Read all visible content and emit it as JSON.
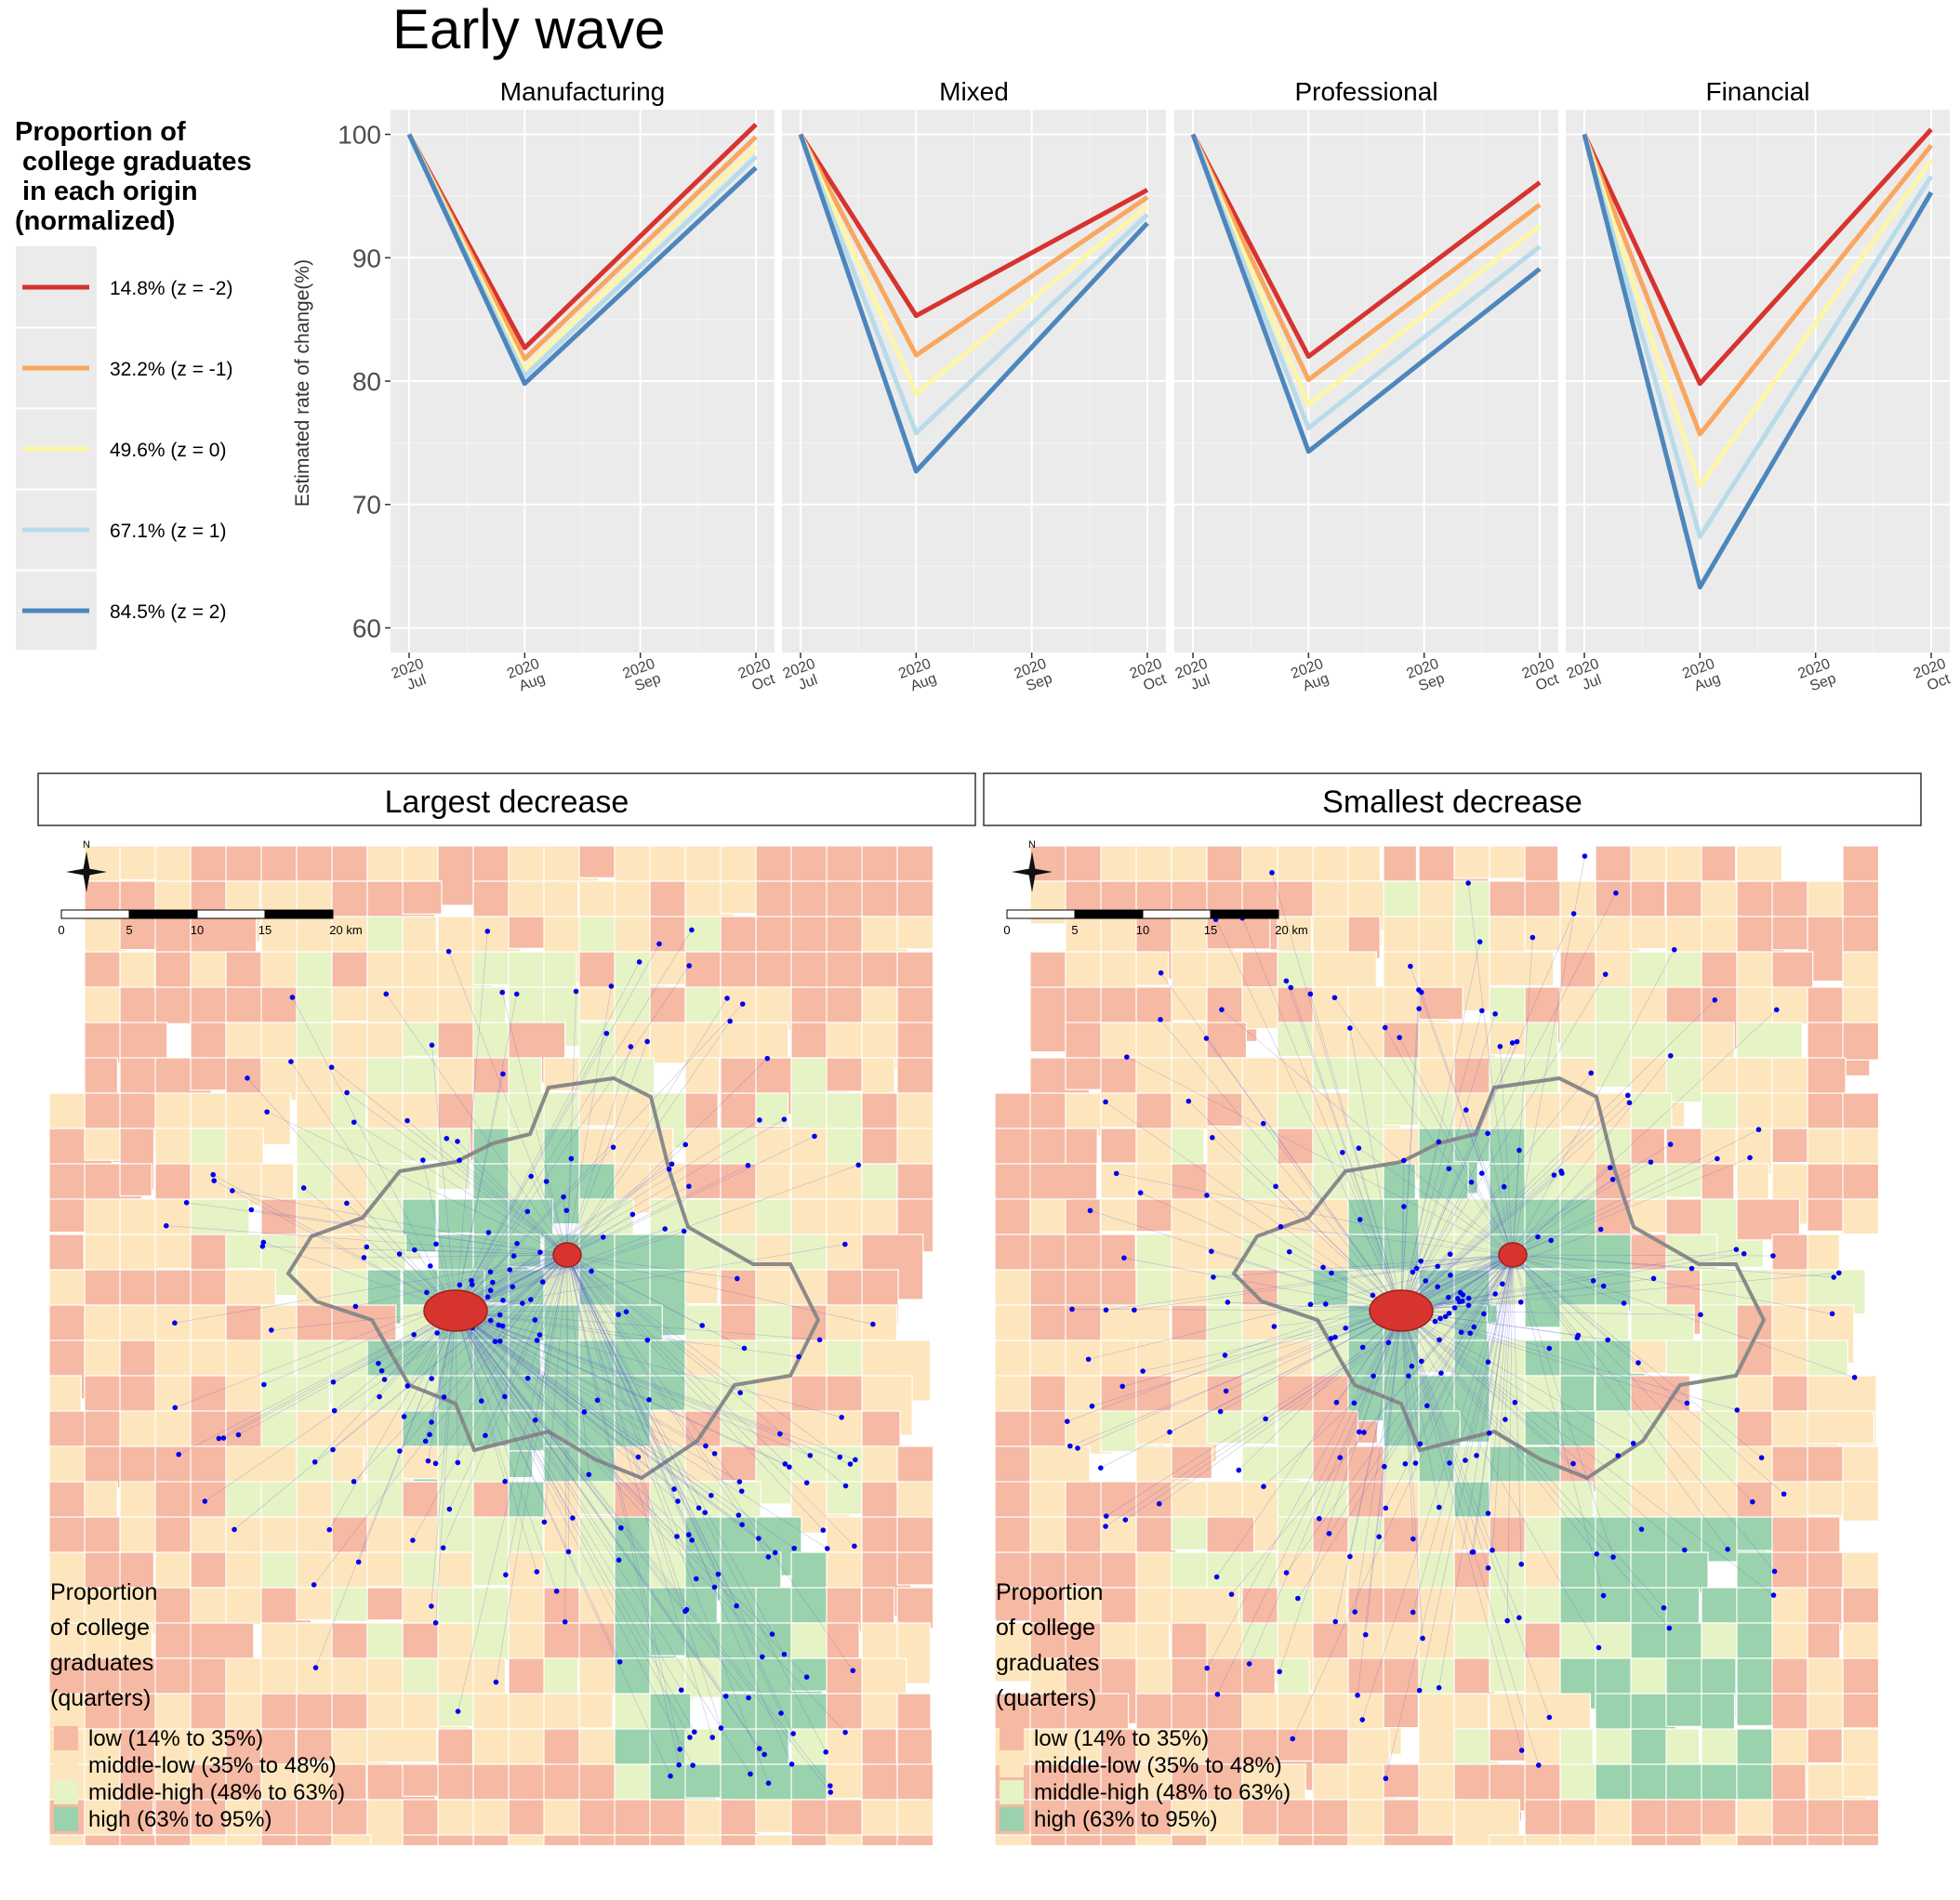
{
  "title": "Early wave",
  "y_axis_label": "Estimated rate of change(%)",
  "legend": {
    "title_lines": [
      "Proportion of",
      " college graduates",
      " in each origin",
      "(normalized)"
    ],
    "entries": [
      {
        "label": "14.8% (z = -2)",
        "color": "#d7332f"
      },
      {
        "label": "32.2% (z = -1)",
        "color": "#f9a75e"
      },
      {
        "label": "49.6% (z = 0)",
        "color": "#fdf6a8"
      },
      {
        "label": "67.1% (z = 1)",
        "color": "#b9dbe9"
      },
      {
        "label": "84.5% (z = 2)",
        "color": "#4c86bd"
      }
    ]
  },
  "chart_data": {
    "type": "line",
    "x": [
      "2020 Jul",
      "2020 Aug",
      "2020 Sep",
      "2020 Oct"
    ],
    "x_tick_lines": [
      [
        "2020",
        "Jul"
      ],
      [
        "2020",
        "Aug"
      ],
      [
        "2020",
        "Sep"
      ],
      [
        "2020",
        "Oct"
      ]
    ],
    "y_ticks": [
      60,
      70,
      80,
      90,
      100
    ],
    "ylim": [
      58,
      102
    ],
    "grid": true,
    "legend_position": "left",
    "facets": [
      {
        "name": "Manufacturing",
        "series": [
          {
            "name": "14.8% (z = -2)",
            "values": [
              100,
              82.7,
              null,
              100.8
            ]
          },
          {
            "name": "32.2% (z = -1)",
            "values": [
              100,
              81.8,
              null,
              99.8
            ]
          },
          {
            "name": "49.6% (z = 0)",
            "values": [
              100,
              81.0,
              null,
              99.0
            ]
          },
          {
            "name": "67.1% (z = 1)",
            "values": [
              100,
              80.4,
              null,
              98.2
            ]
          },
          {
            "name": "84.5% (z = 2)",
            "values": [
              100,
              79.8,
              null,
              97.3
            ]
          }
        ]
      },
      {
        "name": "Mixed",
        "series": [
          {
            "name": "14.8% (z = -2)",
            "values": [
              100,
              85.3,
              null,
              95.5
            ]
          },
          {
            "name": "32.2% (z = -1)",
            "values": [
              100,
              82.1,
              null,
              94.9
            ]
          },
          {
            "name": "49.6% (z = 0)",
            "values": [
              100,
              79.0,
              null,
              94.2
            ]
          },
          {
            "name": "67.1% (z = 1)",
            "values": [
              100,
              75.8,
              null,
              93.5
            ]
          },
          {
            "name": "84.5% (z = 2)",
            "values": [
              100,
              72.7,
              null,
              92.8
            ]
          }
        ]
      },
      {
        "name": "Professional",
        "series": [
          {
            "name": "14.8% (z = -2)",
            "values": [
              100,
              82.0,
              null,
              96.1
            ]
          },
          {
            "name": "32.2% (z = -1)",
            "values": [
              100,
              80.1,
              null,
              94.3
            ]
          },
          {
            "name": "49.6% (z = 0)",
            "values": [
              100,
              78.1,
              null,
              92.6
            ]
          },
          {
            "name": "67.1% (z = 1)",
            "values": [
              100,
              76.2,
              null,
              90.9
            ]
          },
          {
            "name": "84.5% (z = 2)",
            "values": [
              100,
              74.3,
              null,
              89.1
            ]
          }
        ]
      },
      {
        "name": "Financial",
        "series": [
          {
            "name": "14.8% (z = -2)",
            "values": [
              100,
              79.8,
              null,
              100.4
            ]
          },
          {
            "name": "32.2% (z = -1)",
            "values": [
              100,
              75.7,
              null,
              99.1
            ]
          },
          {
            "name": "49.6% (z = 0)",
            "values": [
              100,
              71.5,
              null,
              97.9
            ]
          },
          {
            "name": "67.1% (z = 1)",
            "values": [
              100,
              67.4,
              null,
              96.6
            ]
          },
          {
            "name": "84.5% (z = 2)",
            "values": [
              100,
              63.3,
              null,
              95.3
            ]
          }
        ]
      }
    ]
  },
  "maps": {
    "panels": [
      {
        "title": "Largest decrease"
      },
      {
        "title": "Smallest decrease"
      }
    ],
    "north_label": "N",
    "scale_labels": [
      "0",
      "5",
      "10",
      "15",
      "20 km"
    ],
    "legend_title_lines": [
      "Proportion",
      "of college",
      "graduates",
      "(quarters)"
    ],
    "legend_entries": [
      {
        "label": "low (14% to 35%)",
        "color": "#f6b9a3"
      },
      {
        "label": "middle-low (35% to 48%)",
        "color": "#fde6bd"
      },
      {
        "label": "middle-high (48% to 63%)",
        "color": "#e6f3c4"
      },
      {
        "label": "high (63% to 95%)",
        "color": "#99d2ad"
      }
    ],
    "origin_color": "#0000ee",
    "destination_color": "#d7332f",
    "boundary_color": "#8a8a8a"
  }
}
